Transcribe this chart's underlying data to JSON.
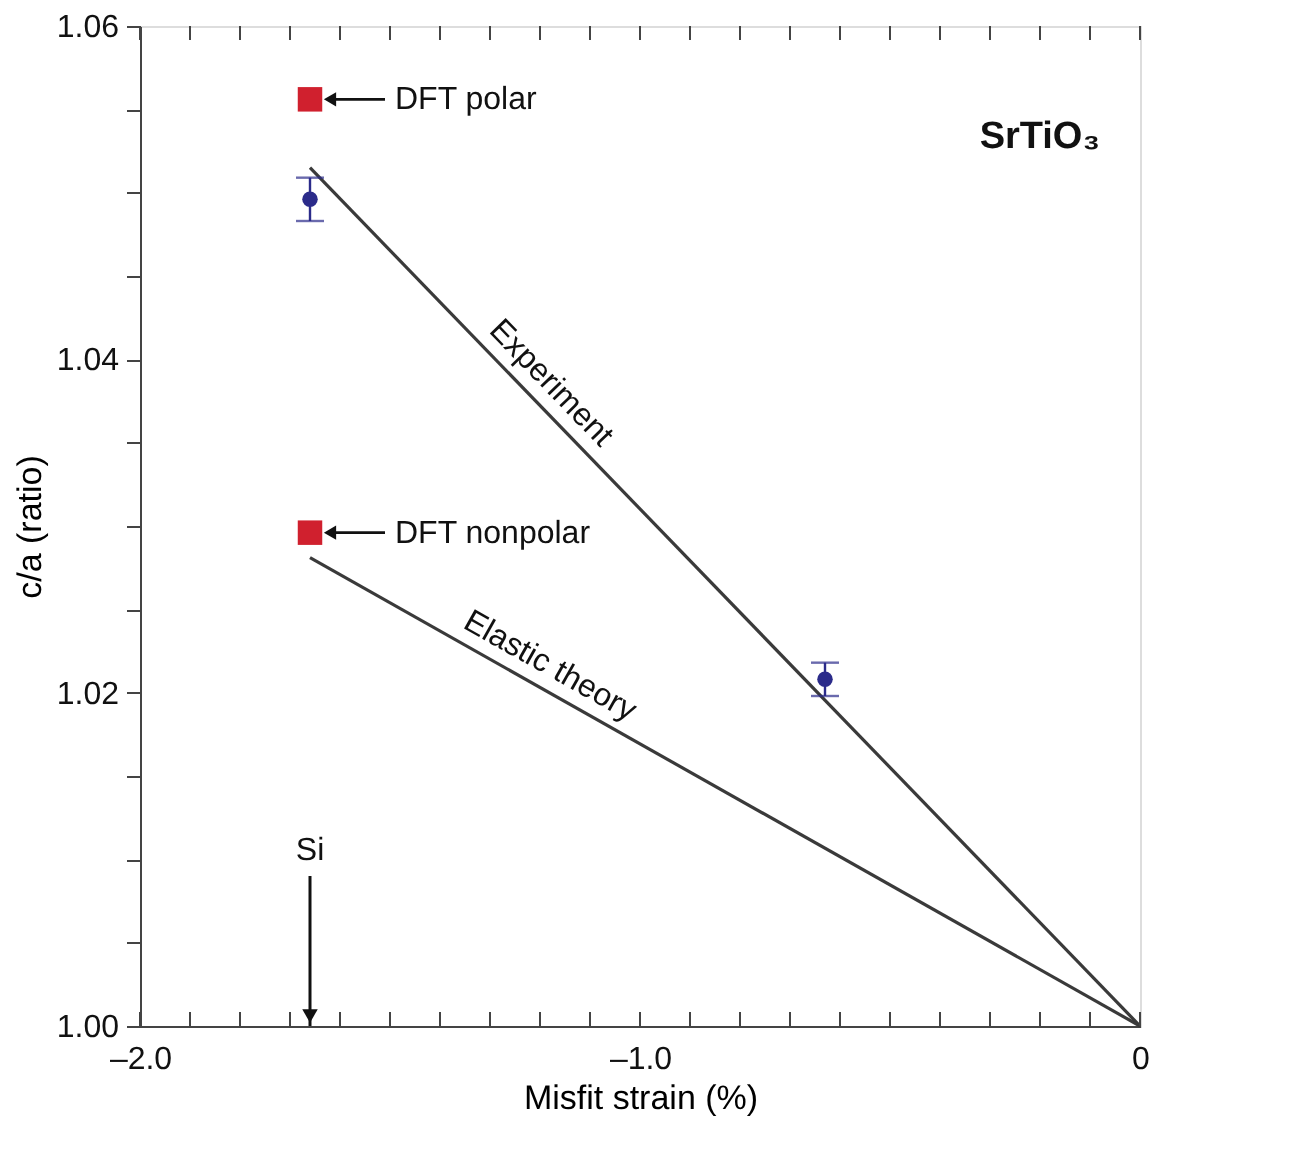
{
  "chart_data": {
    "type": "scatter",
    "xlabel": "Misfit strain (%)",
    "ylabel": "c/a (ratio)",
    "xlim": [
      -2.0,
      0
    ],
    "ylim": [
      1.0,
      1.06
    ],
    "xticks": [
      {
        "value": -2.0,
        "label": "–2.0"
      },
      {
        "value": -1.9,
        "label": null
      },
      {
        "value": -1.8,
        "label": null
      },
      {
        "value": -1.7,
        "label": null
      },
      {
        "value": -1.6,
        "label": null
      },
      {
        "value": -1.5,
        "label": null
      },
      {
        "value": -1.4,
        "label": null
      },
      {
        "value": -1.3,
        "label": null
      },
      {
        "value": -1.2,
        "label": null
      },
      {
        "value": -1.1,
        "label": null
      },
      {
        "value": -1.0,
        "label": "–1.0"
      },
      {
        "value": -0.9,
        "label": null
      },
      {
        "value": -0.8,
        "label": null
      },
      {
        "value": -0.7,
        "label": null
      },
      {
        "value": -0.6,
        "label": null
      },
      {
        "value": -0.5,
        "label": null
      },
      {
        "value": -0.4,
        "label": null
      },
      {
        "value": -0.3,
        "label": null
      },
      {
        "value": -0.2,
        "label": null
      },
      {
        "value": -0.1,
        "label": null
      },
      0
    ],
    "yticks": [
      {
        "value": 1.0,
        "label": "1.00"
      },
      {
        "value": 1.005,
        "label": null
      },
      {
        "value": 1.01,
        "label": null
      },
      {
        "value": 1.015,
        "label": null
      },
      1.02,
      {
        "value": 1.025,
        "label": null
      },
      {
        "value": 1.03,
        "label": null
      },
      {
        "value": 1.035,
        "label": null
      },
      1.04,
      {
        "value": 1.045,
        "label": null
      },
      {
        "value": 1.05,
        "label": null
      },
      {
        "value": 1.055,
        "label": null
      },
      1.06
    ],
    "series": [
      {
        "name": "Experiment",
        "type": "line",
        "color": "#3a3a3a",
        "x": [
          -1.66,
          0
        ],
        "values": [
          1.0515,
          1.0
        ]
      },
      {
        "name": "Elastic theory",
        "type": "line",
        "color": "#3a3a3a",
        "x": [
          -1.66,
          0
        ],
        "values": [
          1.0281,
          1.0
        ]
      },
      {
        "marker": "circle",
        "color": "#2b2b8a",
        "x": [
          -1.66,
          -0.63
        ],
        "values": [
          1.0496,
          1.0208
        ],
        "errors": [
          0.0013,
          0.001
        ]
      },
      {
        "name": "DFT polar",
        "marker": "square",
        "color": "#d0202e",
        "x": [
          -1.66
        ],
        "values": [
          1.0556
        ]
      },
      {
        "name": "DFT nonpolar",
        "marker": "square",
        "color": "#d0202e",
        "x": [
          -1.66
        ],
        "values": [
          1.0296
        ]
      }
    ],
    "annotations": [
      "SrTiO₃",
      "Si"
    ],
    "grid": false
  }
}
